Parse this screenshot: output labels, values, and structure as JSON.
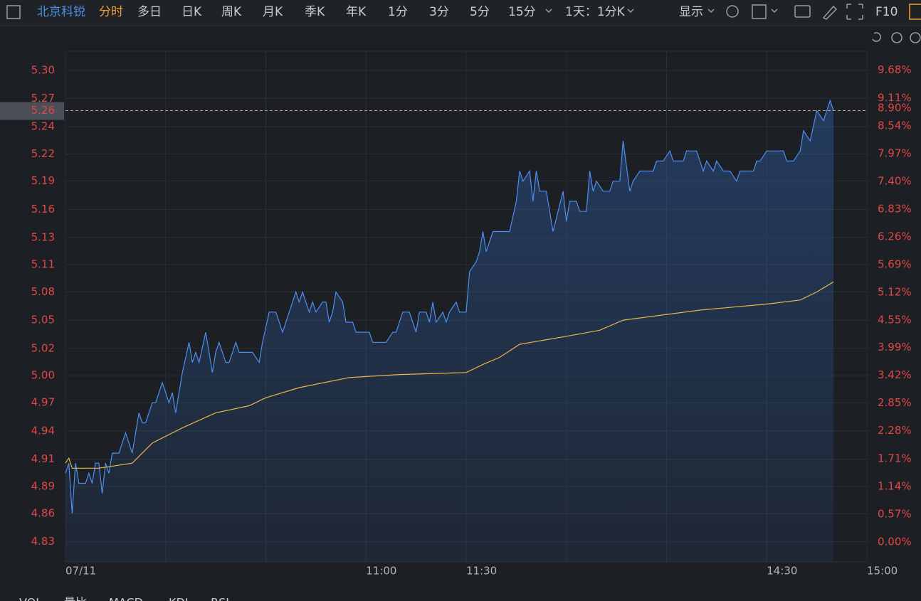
{
  "toolbar": {
    "stock": "北京科锐",
    "tabs": [
      "分时",
      "多日",
      "日K",
      "周K",
      "月K",
      "季K",
      "年K",
      "1分",
      "3分",
      "5分",
      "15分",
      "1天：1分K",
      "显示",
      "F10"
    ]
  },
  "indicators": [
    "VOL",
    "量比",
    "MACD",
    "KDJ",
    "RSI"
  ],
  "chart_data": {
    "type": "line",
    "xlim": [
      0,
      240
    ],
    "xticks": [
      {
        "value": 0,
        "label": "07/11"
      },
      {
        "value": 30,
        "label": null
      },
      {
        "value": 60,
        "label": null
      },
      {
        "value": 90,
        "label": "11:00"
      },
      {
        "value": 120,
        "label": "11:30"
      },
      {
        "value": 150,
        "label": null
      },
      {
        "value": 180,
        "label": null
      },
      {
        "value": 210,
        "label": "14:30"
      },
      {
        "value": 240,
        "label": "15:00"
      }
    ],
    "ylim": [
      4.812,
      5.319
    ],
    "yticks": [
      {
        "value": 4.832,
        "label": "4.83"
      },
      {
        "value": 4.86,
        "label": "4.86"
      },
      {
        "value": 4.887,
        "label": "4.89"
      },
      {
        "value": 4.914,
        "label": "4.91"
      },
      {
        "value": 4.942,
        "label": "4.94"
      },
      {
        "value": 4.97,
        "label": "4.97"
      },
      {
        "value": 4.997,
        "label": "5.00"
      },
      {
        "value": 5.024,
        "label": "5.02"
      },
      {
        "value": 5.052,
        "label": "5.05"
      },
      {
        "value": 5.08,
        "label": "5.08"
      },
      {
        "value": 5.107,
        "label": "5.11"
      },
      {
        "value": 5.134,
        "label": "5.13"
      },
      {
        "value": 5.162,
        "label": "5.16"
      },
      {
        "value": 5.19,
        "label": "5.19"
      },
      {
        "value": 5.217,
        "label": "5.22"
      },
      {
        "value": 5.244,
        "label": "5.24"
      },
      {
        "value": 5.272,
        "label": "5.27"
      },
      {
        "value": 5.3,
        "label": "5.30"
      }
    ],
    "y2lim": [
      -0.41,
      10.07
    ],
    "y2ticks": [
      {
        "value": 0,
        "label": "0.00%"
      },
      {
        "value": 0.57,
        "label": "0.57%"
      },
      {
        "value": 1.14,
        "label": "1.14%"
      },
      {
        "value": 1.71,
        "label": "1.71%"
      },
      {
        "value": 2.28,
        "label": "2.28%"
      },
      {
        "value": 2.85,
        "label": "2.85%"
      },
      {
        "value": 3.42,
        "label": "3.42%"
      },
      {
        "value": 3.99,
        "label": "3.99%"
      },
      {
        "value": 4.55,
        "label": "4.55%"
      },
      {
        "value": 5.12,
        "label": "5.12%"
      },
      {
        "value": 5.69,
        "label": "5.69%"
      },
      {
        "value": 6.26,
        "label": "6.26%"
      },
      {
        "value": 6.83,
        "label": "6.83%"
      },
      {
        "value": 7.4,
        "label": "7.40%"
      },
      {
        "value": 7.97,
        "label": "7.97%"
      },
      {
        "value": 8.54,
        "label": "8.54%"
      },
      {
        "value": 9.11,
        "label": "9.11%"
      },
      {
        "value": 9.68,
        "label": "9.68%"
      }
    ],
    "grid": true,
    "last_price": 5.26,
    "last_pct": {
      "value": 8.9,
      "label": "8.90%"
    },
    "series": [
      {
        "color": "#4e8ef0",
        "area": true,
        "x": [
          0,
          1,
          2,
          3,
          4,
          6,
          7,
          8,
          9,
          10,
          11,
          12,
          13,
          14,
          16,
          18,
          20,
          22,
          23,
          24,
          26,
          27,
          29,
          31,
          32,
          33,
          35,
          37,
          38,
          39,
          40,
          42,
          44,
          45,
          46,
          48,
          49,
          51,
          52,
          56,
          58,
          59,
          61,
          63,
          65,
          67,
          69,
          70,
          71,
          73,
          74,
          75,
          77,
          78,
          79,
          80,
          81,
          83,
          84,
          86,
          87,
          91,
          92,
          96,
          98,
          99,
          101,
          103,
          104,
          105,
          106,
          108,
          109,
          110,
          111,
          113,
          114,
          115,
          117,
          118,
          120,
          121,
          123,
          124,
          125,
          126,
          128,
          130,
          133,
          135,
          136,
          137,
          139,
          140,
          141,
          142,
          144,
          146,
          149,
          150,
          151,
          153,
          154,
          156,
          157,
          158,
          159,
          161,
          163,
          164,
          166,
          167,
          169,
          170,
          172,
          176,
          177,
          179,
          181,
          182,
          185,
          186,
          189,
          190,
          191,
          192,
          194,
          195,
          197,
          199,
          201,
          202,
          206,
          207,
          208,
          210,
          215,
          216,
          218,
          220,
          221,
          223,
          225,
          227,
          229,
          230
        ],
        "values": [
          4.9,
          4.91,
          4.86,
          4.91,
          4.89,
          4.89,
          4.9,
          4.89,
          4.91,
          4.91,
          4.88,
          4.91,
          4.9,
          4.92,
          4.92,
          4.94,
          4.92,
          4.96,
          4.95,
          4.95,
          4.97,
          4.97,
          4.99,
          4.97,
          4.98,
          4.96,
          5,
          5.03,
          5.01,
          5.02,
          5.01,
          5.04,
          5,
          5.02,
          5.03,
          5.01,
          5.01,
          5.03,
          5.02,
          5.02,
          5.01,
          5.03,
          5.06,
          5.06,
          5.04,
          5.06,
          5.08,
          5.07,
          5.08,
          5.06,
          5.07,
          5.06,
          5.07,
          5.07,
          5.05,
          5.06,
          5.08,
          5.07,
          5.05,
          5.05,
          5.04,
          5.04,
          5.03,
          5.03,
          5.04,
          5.04,
          5.06,
          5.06,
          5.05,
          5.04,
          5.06,
          5.06,
          5.05,
          5.07,
          5.05,
          5.06,
          5.05,
          5.06,
          5.07,
          5.06,
          5.06,
          5.1,
          5.11,
          5.12,
          5.14,
          5.12,
          5.14,
          5.14,
          5.14,
          5.17,
          5.2,
          5.19,
          5.2,
          5.17,
          5.2,
          5.18,
          5.18,
          5.14,
          5.18,
          5.15,
          5.17,
          5.17,
          5.16,
          5.16,
          5.2,
          5.18,
          5.19,
          5.18,
          5.18,
          5.19,
          5.19,
          5.23,
          5.18,
          5.19,
          5.2,
          5.2,
          5.21,
          5.21,
          5.22,
          5.21,
          5.21,
          5.22,
          5.22,
          5.21,
          5.2,
          5.21,
          5.2,
          5.21,
          5.2,
          5.2,
          5.19,
          5.2,
          5.2,
          5.21,
          5.21,
          5.22,
          5.22,
          5.21,
          5.21,
          5.22,
          5.24,
          5.23,
          5.26,
          5.25,
          5.27,
          5.26
        ]
      },
      {
        "color": "#e8b64a",
        "x": [
          0,
          1,
          2,
          10,
          20,
          26,
          35,
          45,
          55,
          60,
          70,
          85,
          100,
          120,
          125,
          130,
          136,
          150,
          160,
          167,
          190,
          210,
          220,
          225,
          230
        ],
        "values": [
          4.91,
          4.915,
          4.905,
          4.905,
          4.91,
          4.93,
          4.945,
          4.96,
          4.967,
          4.975,
          4.985,
          4.995,
          4.998,
          5.0,
          5.008,
          5.015,
          5.028,
          5.036,
          5.042,
          5.052,
          5.062,
          5.068,
          5.072,
          5.08,
          5.09
        ]
      }
    ]
  }
}
